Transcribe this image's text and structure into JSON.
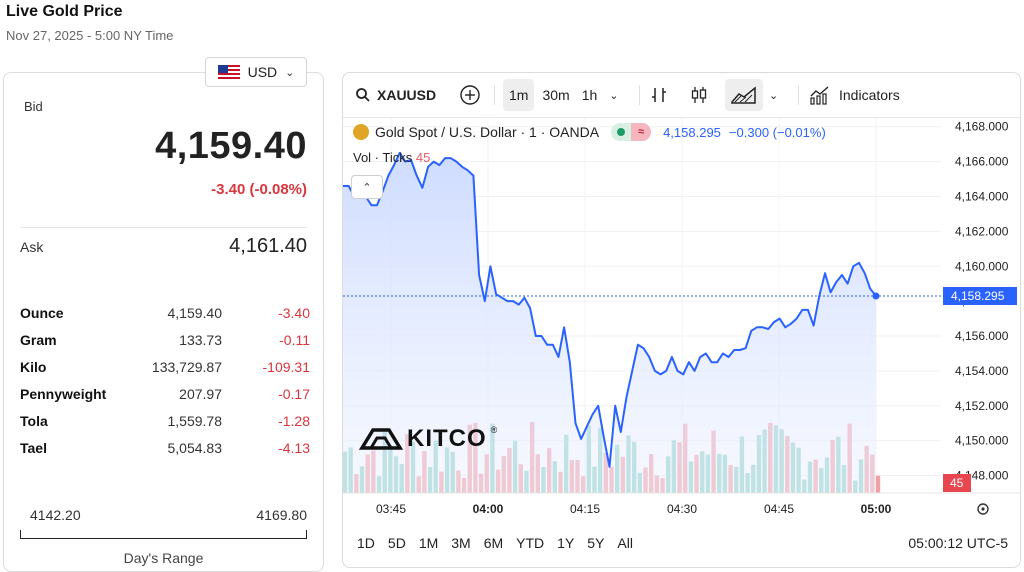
{
  "header": {
    "title": "Live Gold Price",
    "subtitle": "Nov 27, 2025 - 5:00 NY Time"
  },
  "currency": {
    "selected": "USD"
  },
  "quote": {
    "bid_label": "Bid",
    "bid": "4,159.40",
    "change": "-3.40 (-0.08%)",
    "ask_label": "Ask",
    "ask": "4,161.40"
  },
  "units": [
    {
      "name": "Ounce",
      "price": "4,159.40",
      "change": "-3.40"
    },
    {
      "name": "Gram",
      "price": "133.73",
      "change": "-0.11"
    },
    {
      "name": "Kilo",
      "price": "133,729.87",
      "change": "-109.31"
    },
    {
      "name": "Pennyweight",
      "price": "207.97",
      "change": "-0.17"
    },
    {
      "name": "Tola",
      "price": "1,559.78",
      "change": "-1.28"
    },
    {
      "name": "Tael",
      "price": "5,054.83",
      "change": "-4.13"
    }
  ],
  "days_range": {
    "low": "4142.20",
    "high": "4169.80",
    "label": "Day's Range"
  },
  "toolbar": {
    "symbol": "XAUUSD",
    "intervals": [
      "1m",
      "30m",
      "1h"
    ],
    "active_interval": "1m",
    "indicators_label": "Indicators"
  },
  "legend": {
    "name": "Gold Spot / U.S. Dollar · 1 · OANDA",
    "value": "4,158.295",
    "change": "−0.300 (−0.01%)",
    "vol_label": "Vol · Ticks",
    "vol_value": "45"
  },
  "watermark": "KITCO",
  "time_ranges": [
    "1D",
    "5D",
    "1M",
    "3M",
    "6M",
    "YTD",
    "1Y",
    "5Y",
    "All"
  ],
  "clock": "05:00:12 UTC-5",
  "colors": {
    "line": "#2962ff",
    "up": "#8fd3c6",
    "down": "#f2a0a6",
    "negative": "#d9363e"
  },
  "chart_data": {
    "type": "area",
    "x_tick_labels": [
      "03:45",
      "04:00",
      "04:15",
      "04:30",
      "04:45",
      "05:00"
    ],
    "y_tick_labels": [
      "4,168.000",
      "4,166.000",
      "4,164.000",
      "4,162.000",
      "4,160.000",
      "4,158.000",
      "4,156.000",
      "4,154.000",
      "4,152.000",
      "4,150.000",
      "4,148.000"
    ],
    "ylim": [
      4147,
      4168.5
    ],
    "last_price": 4158.295,
    "last_price_label": "4,158.295",
    "volume_last": "45",
    "price": [
      4164.6,
      4164.6,
      4164.0,
      4164.6,
      4164.0,
      4163.5,
      4163.5,
      4164.3,
      4165.2,
      4165.8,
      4166.5,
      4166.0,
      4166.1,
      4165.2,
      4164.5,
      4165.7,
      4166.0,
      4165.8,
      4166.2,
      4166.2,
      4166.0,
      4165.7,
      4165.5,
      4165.2,
      4159.5,
      4158.0,
      4160.0,
      4158.4,
      4158.2,
      4158.0,
      4158.0,
      4157.8,
      4158.2,
      4157.6,
      4156.0,
      4156.0,
      4155.5,
      4155.5,
      4154.8,
      4156.5,
      4154.5,
      4151.0,
      4150.1,
      4150.8,
      4151.5,
      4152.0,
      4150.2,
      4148.5,
      4152.0,
      4150.5,
      4152.5,
      4154.0,
      4155.5,
      4155.3,
      4154.8,
      4154.0,
      4153.8,
      4154.0,
      4154.8,
      4154.0,
      4153.8,
      4154.5,
      4154.0,
      4154.8,
      4155.0,
      4154.5,
      4154.5,
      4155.0,
      4154.8,
      4155.2,
      4155.2,
      4155.3,
      4156.3,
      4156.5,
      4156.5,
      4156.4,
      4156.8,
      4157.0,
      4156.5,
      4156.7,
      4157.0,
      4157.5,
      4157.5,
      4156.6,
      4158.3,
      4159.6,
      4158.5,
      4159.1,
      4159.5,
      4159.0,
      4160.0,
      4160.2,
      4159.6,
      4158.7,
      4158.3
    ]
  }
}
